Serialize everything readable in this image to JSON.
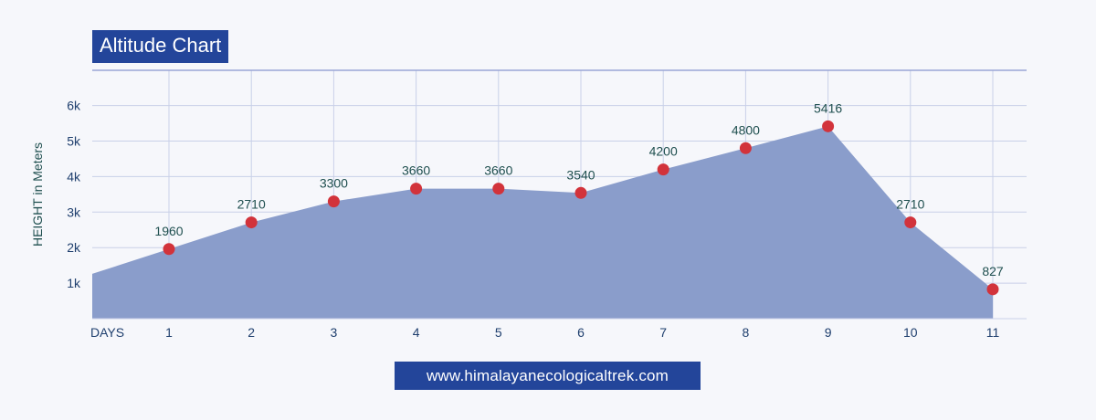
{
  "header": {
    "title": "Altitude Chart"
  },
  "footer": {
    "url": "www.himalayanecologicaltrek.com"
  },
  "colors": {
    "area": "#8a9dcb",
    "marker": "#d2333b",
    "badge": "#23459a",
    "grid": "#c9d0e8"
  },
  "chart_data": {
    "type": "area",
    "title": "Altitude Chart",
    "xlabel": "DAYS",
    "ylabel": "HEIGHT in Meters",
    "x": [
      1,
      2,
      3,
      4,
      5,
      6,
      7,
      8,
      9,
      10,
      11
    ],
    "values": [
      1960,
      2710,
      3300,
      3660,
      3660,
      3540,
      4200,
      4800,
      5416,
      2710,
      827
    ],
    "value_labels": [
      "1960",
      "2710",
      "3300",
      "3660",
      "3660",
      "3540",
      "4200",
      "4800",
      "5416",
      "2710",
      "827"
    ],
    "yticks": [
      "1k",
      "2k",
      "3k",
      "4k",
      "5k",
      "6k"
    ],
    "ylim": [
      0,
      6000
    ],
    "grid": true
  }
}
